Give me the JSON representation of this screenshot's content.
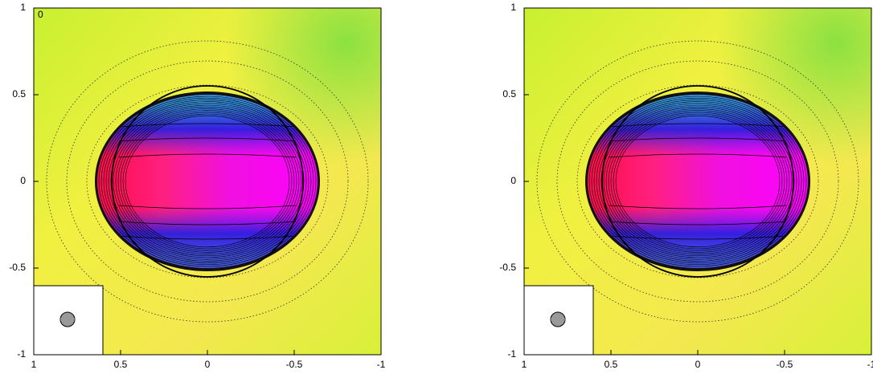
{
  "chart_data": [
    {
      "type": "image",
      "annotation": "0",
      "xlim": [
        1,
        -1
      ],
      "ylim": [
        -1,
        1
      ],
      "xticks": [
        1,
        0.5,
        0,
        -0.5,
        -1
      ],
      "yticks": [
        -1,
        -0.5,
        0,
        0.5,
        1
      ]
    },
    {
      "type": "image",
      "xlim": [
        1,
        -1
      ],
      "ylim": [
        -1,
        1
      ],
      "xticks": [
        1,
        0.5,
        0,
        -0.5,
        -1
      ],
      "yticks": [
        -1,
        -0.5,
        0,
        0.5,
        1
      ]
    }
  ]
}
